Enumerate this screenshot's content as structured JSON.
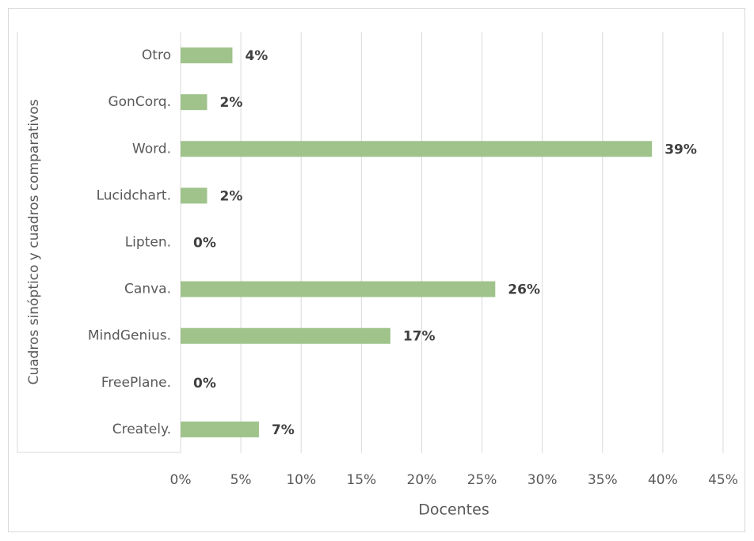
{
  "chart_data": {
    "type": "bar",
    "orientation": "horizontal",
    "y_label": "Cuadros sinóptico y cuadros comparativos",
    "x_label": "Docentes",
    "categories": [
      "Otro",
      "GonCorq.",
      "Word.",
      "Lucidchart.",
      "Lipten.",
      "Canva.",
      "MindGenius.",
      "FreePlane.",
      "Creately."
    ],
    "values": [
      4.3,
      2.2,
      39.1,
      2.2,
      0,
      26.1,
      17.4,
      0,
      6.5
    ],
    "value_labels": [
      "4%",
      "2%",
      "39%",
      "2%",
      "0%",
      "26%",
      "17%",
      "0%",
      "7%"
    ],
    "color": "#9fc38b",
    "xlim": [
      0,
      45
    ],
    "xticks": [
      {
        "value": 0,
        "label": "0%"
      },
      {
        "value": 5,
        "label": "5%"
      },
      {
        "value": 10,
        "label": "10%"
      },
      {
        "value": 15,
        "label": "15%"
      },
      {
        "value": 20,
        "label": "20%"
      },
      {
        "value": 25,
        "label": "25%"
      },
      {
        "value": 30,
        "label": "30%"
      },
      {
        "value": 35,
        "label": "35%"
      },
      {
        "value": 40,
        "label": "40%"
      },
      {
        "value": 45,
        "label": "45%"
      }
    ],
    "grid": true
  }
}
